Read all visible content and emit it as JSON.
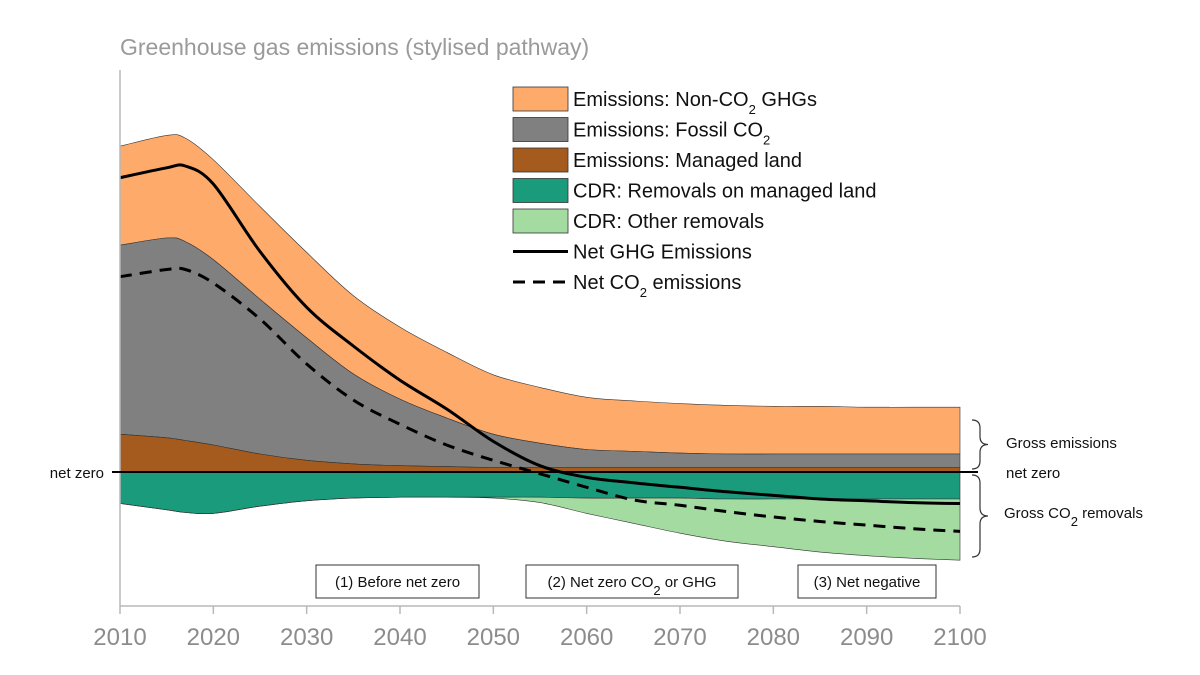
{
  "chart_data": {
    "type": "area",
    "title": "Greenhouse gas emissions (stylised pathway)",
    "x_ticks": [
      "2010",
      "2020",
      "2030",
      "2040",
      "2050",
      "2060",
      "2070",
      "2080",
      "2090",
      "2100"
    ],
    "xlim": [
      2010,
      2100
    ],
    "ylim": [
      -100,
      425
    ],
    "grid": false,
    "legend_placement": "top-right",
    "x": [
      2010,
      2015,
      2017,
      2020,
      2025,
      2030,
      2035,
      2040,
      2045,
      2050,
      2055,
      2060,
      2065,
      2070,
      2075,
      2080,
      2085,
      2090,
      2095,
      2100
    ],
    "series": [
      {
        "name": "Emissions: Non-CO2 GHGs",
        "kind": "area",
        "color": "#fdaa6b",
        "values": [
          110,
          114,
          115,
          111,
          103,
          95,
          87,
          80,
          73,
          66,
          62,
          58,
          56,
          55,
          54,
          53,
          53,
          52,
          52,
          52
        ]
      },
      {
        "name": "Emissions: Fossil CO2",
        "kind": "area",
        "color": "#808080",
        "values": [
          210,
          222,
          221,
          206,
          172,
          136,
          100,
          74,
          54,
          37,
          27,
          20,
          18,
          16,
          15,
          15,
          15,
          15,
          15,
          15
        ]
      },
      {
        "name": "Emissions: Managed land",
        "kind": "area",
        "color": "#a55a1e",
        "values": [
          42,
          38,
          35,
          30,
          20,
          13,
          9,
          7,
          6,
          5,
          5,
          5,
          5,
          5,
          5,
          5,
          5,
          5,
          5,
          5
        ]
      },
      {
        "name": "CDR: Removals on managed land",
        "kind": "area",
        "color": "#1a9c7c",
        "values": [
          -35,
          -42,
          -45,
          -46,
          -38,
          -32,
          -29,
          -28,
          -28,
          -28,
          -28,
          -29,
          -29,
          -29,
          -30,
          -30,
          -30,
          -30,
          -30,
          -30
        ]
      },
      {
        "name": "CDR: Other removals",
        "kind": "area",
        "color": "#a4dba1",
        "values": [
          0,
          0,
          0,
          0,
          0,
          0,
          0,
          0,
          0,
          -1,
          -6,
          -17,
          -28,
          -39,
          -47,
          -53,
          -59,
          -63,
          -66,
          -68
        ]
      },
      {
        "name": "Net GHG Emissions",
        "kind": "line",
        "style": "solid",
        "color": "#000000",
        "values": [
          327,
          338,
          340,
          320,
          245,
          183,
          140,
          102,
          70,
          34,
          7,
          -6,
          -12,
          -17,
          -22,
          -26,
          -30,
          -32,
          -34,
          -35
        ]
      },
      {
        "name": "Net CO2 emissions",
        "kind": "line",
        "style": "dashed",
        "color": "#000000",
        "values": [
          217,
          225,
          225,
          210,
          170,
          120,
          80,
          53,
          30,
          13,
          -2,
          -17,
          -31,
          -37,
          -44,
          -50,
          -55,
          -59,
          -63,
          -66
        ]
      }
    ],
    "legend": [
      {
        "base": "Emissions: Non-CO",
        "sub": "2",
        "tail": " GHGs"
      },
      {
        "base": "Emissions: Fossil CO",
        "sub": "2",
        "tail": ""
      },
      {
        "base": "Emissions: Managed land",
        "sub": "",
        "tail": ""
      },
      {
        "base": "CDR: Removals on managed land",
        "sub": "",
        "tail": ""
      },
      {
        "base": "CDR: Other removals",
        "sub": "",
        "tail": ""
      },
      {
        "base": "Net GHG Emissions",
        "sub": "",
        "tail": ""
      },
      {
        "base": "Net CO",
        "sub": "2",
        "tail": " emissions"
      }
    ],
    "annotations": {
      "net_zero_left": "net zero",
      "net_zero_right": "net zero",
      "gross_emissions": "Gross emissions",
      "gross_removals": {
        "base": "Gross CO",
        "sub": "2",
        "tail": " removals"
      }
    },
    "phases": [
      {
        "base": "(1) Before net zero",
        "sub": "",
        "tail": ""
      },
      {
        "base": "(2) Net zero CO",
        "sub": "2",
        "tail": " or GHG"
      },
      {
        "base": "(3) Net negative",
        "sub": "",
        "tail": ""
      }
    ]
  }
}
